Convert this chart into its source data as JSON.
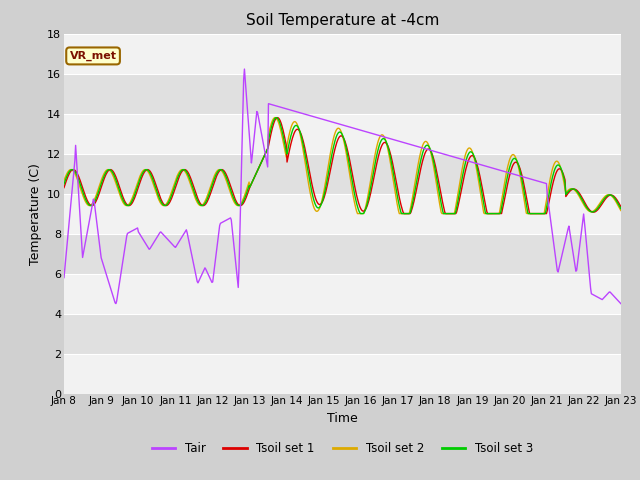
{
  "title": "Soil Temperature at -4cm",
  "xlabel": "Time",
  "ylabel": "Temperature (C)",
  "ylim": [
    0,
    18
  ],
  "xlim": [
    0,
    15
  ],
  "yticks": [
    0,
    2,
    4,
    6,
    8,
    10,
    12,
    14,
    16,
    18
  ],
  "xtick_labels": [
    "Jan 8",
    "Jan 9",
    "Jan 10",
    "Jan 11",
    "Jan 12",
    "Jan 13",
    "Jan 14",
    "Jan 15",
    "Jan 16",
    "Jan 17",
    "Jan 18",
    "Jan 19",
    "Jan 20",
    "Jan 21",
    "Jan 22",
    "Jan 23"
  ],
  "annotation_text": "VR_met",
  "colors": {
    "Tair": "#bb44ff",
    "Tsoil1": "#dd0000",
    "Tsoil2": "#ddaa00",
    "Tsoil3": "#00cc00"
  },
  "legend_labels": [
    "Tair",
    "Tsoil set 1",
    "Tsoil set 2",
    "Tsoil set 3"
  ],
  "band_colors": [
    "#f2f2f2",
    "#e0e0e0"
  ]
}
